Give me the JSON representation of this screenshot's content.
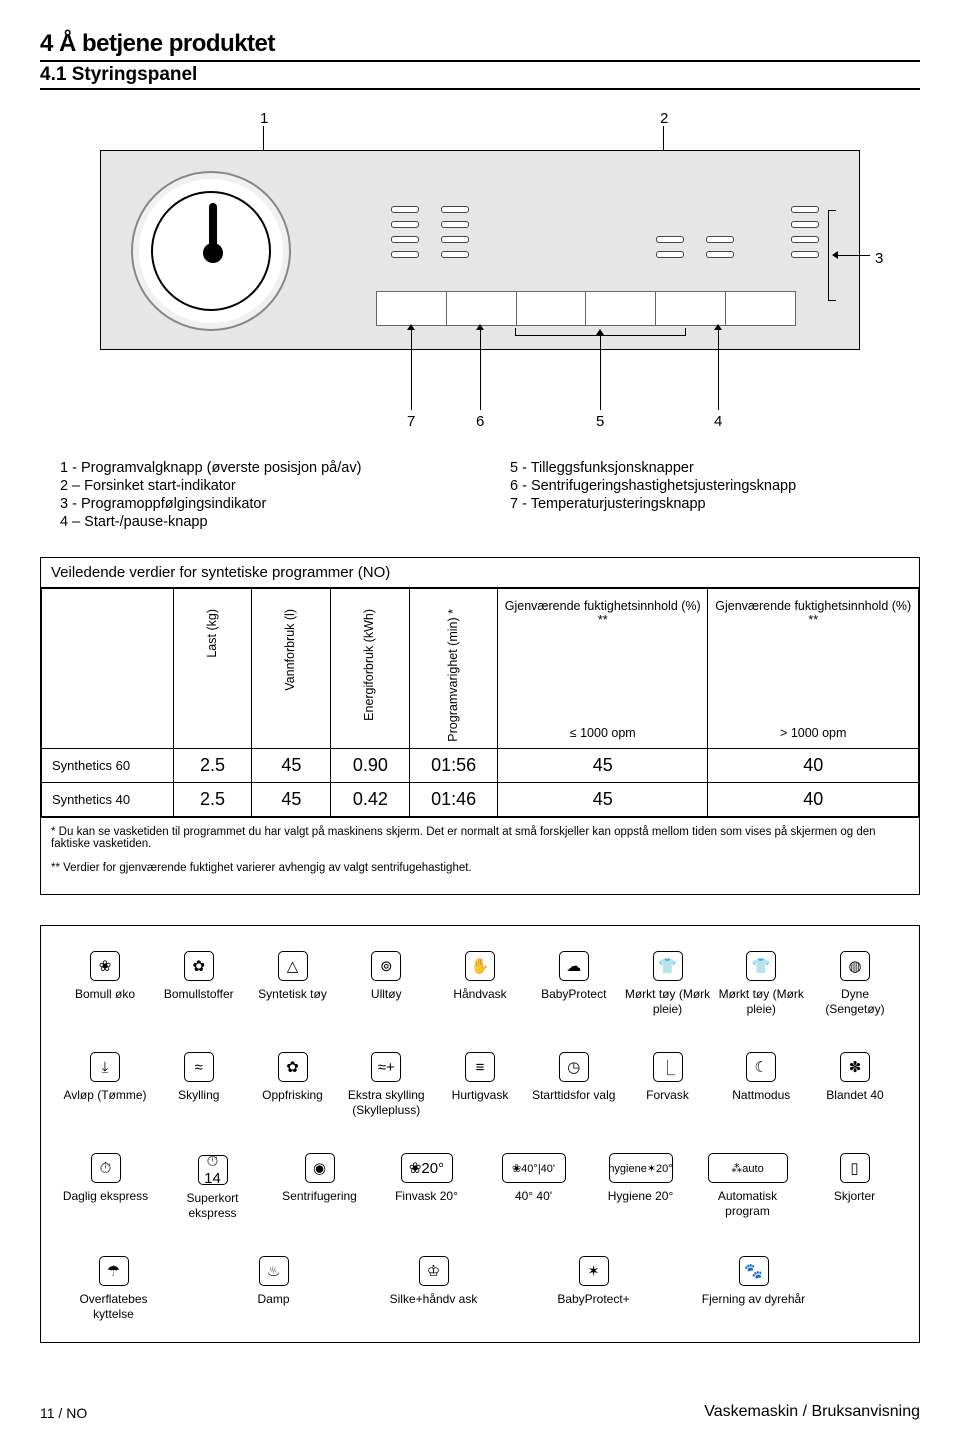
{
  "head": {
    "section": "4   Å betjene produktet",
    "subsection": "4.1 Styringspanel"
  },
  "diagram": {
    "top_labels": [
      "1",
      "2"
    ],
    "right_label": "3",
    "bottom_labels": [
      "7",
      "6",
      "5",
      "4"
    ]
  },
  "legend": {
    "left": [
      "1 - Programvalgknapp (øverste posisjon på/av)",
      "2 – Forsinket start-indikator",
      "3 - Programoppfølgingsindikator",
      "4 – Start-/pause-knapp"
    ],
    "right": [
      "5 - Tilleggsfunksjonsknapper",
      "6 - Sentrifugeringshastighetsjusteringsknapp",
      "7 - Temperaturjusteringsknapp"
    ]
  },
  "table": {
    "title": "Veiledende verdier for syntetiske programmer (NO)",
    "cols": {
      "c1": "Last (kg)",
      "c2": "Vannforbruk (l)",
      "c3": "Energiforbruk (kWh)",
      "c4": "Programvarighet (min) *",
      "c5_top": "Gjenværende fuktighetsinnhold (%) **",
      "c5_sub": "≤ 1000 opm",
      "c6_top": "Gjenværende fuktighetsinnhold (%) **",
      "c6_sub": "> 1000 opm"
    },
    "rows": [
      {
        "name": "Synthetics 60",
        "c1": "2.5",
        "c2": "45",
        "c3": "0.90",
        "c4": "01:56",
        "c5": "45",
        "c6": "40"
      },
      {
        "name": "Synthetics 40",
        "c1": "2.5",
        "c2": "45",
        "c3": "0.42",
        "c4": "01:46",
        "c5": "45",
        "c6": "40"
      }
    ],
    "note1": "* Du kan se vasketiden til programmet du har valgt på maskinens skjerm. Det er normalt at små forskjeller kan oppstå mellom tiden som vises på skjermen og den faktiske vasketiden.",
    "note2": "** Verdier for gjenværende fuktighet varierer avhengig av valgt sentrifugehastighet."
  },
  "programs": {
    "row1": [
      {
        "glyph": "❀",
        "label": "Bomull øko"
      },
      {
        "glyph": "✿",
        "label": "Bomullstoffer"
      },
      {
        "glyph": "△",
        "label": "Syntetisk tøy"
      },
      {
        "glyph": "⊚",
        "label": "Ulltøy"
      },
      {
        "glyph": "✋",
        "label": "Håndvask"
      },
      {
        "glyph": "☁",
        "label": "BabyProtect"
      },
      {
        "glyph": "👕",
        "label": "Mørkt tøy (Mørk pleie)"
      },
      {
        "glyph": "👕",
        "label": "Mørkt tøy (Mørk pleie)"
      },
      {
        "glyph": "◍",
        "label": "Dyne (Sengetøy)"
      }
    ],
    "row2": [
      {
        "glyph": "⤓",
        "label": "Avløp (Tømme)"
      },
      {
        "glyph": "≈",
        "label": "Skylling"
      },
      {
        "glyph": "✿",
        "label": "Oppfrisking"
      },
      {
        "glyph": "≈+",
        "label": "Ekstra skylling (Skyllepluss)"
      },
      {
        "glyph": "≡",
        "label": "Hurtigvask"
      },
      {
        "glyph": "◷",
        "label": "Starttidsfor valg"
      },
      {
        "glyph": "⎿",
        "label": "Forvask"
      },
      {
        "glyph": "☾",
        "label": "Nattmodus"
      },
      {
        "glyph": "✽",
        "label": "Blandet 40"
      }
    ],
    "row3": [
      {
        "glyph": "⏱",
        "label": "Daglig ekspress"
      },
      {
        "glyph": "⏱14",
        "label": "Superkort ekspress"
      },
      {
        "glyph": "◉",
        "label": "Sentrifugering"
      },
      {
        "glyph": "❀20°",
        "label": "Finvask 20°",
        "w": "wider"
      },
      {
        "glyph": "❀40°|40'",
        "label": "40° 40'",
        "w": "wider2"
      },
      {
        "glyph": "hygiene✶20°",
        "label": "Hygiene 20°",
        "w": "wider2"
      },
      {
        "glyph": "⁂auto",
        "label": "Automatisk program",
        "w": "wider3"
      },
      {
        "glyph": "▯",
        "label": "Skjorter"
      }
    ],
    "row4": [
      {
        "glyph": "☂",
        "label": "Overflatebes kyttelse"
      },
      {
        "glyph": "♨",
        "label": "Damp"
      },
      {
        "glyph": "♔",
        "label": "Silke+håndv ask"
      },
      {
        "glyph": "✶",
        "label": "BabyProtect+"
      },
      {
        "glyph": "🐾",
        "label": "Fjerning av dyrehår"
      }
    ]
  },
  "footer": {
    "page": "11 / NO",
    "doc": "Vaskemaskin / Bruksanvisning"
  }
}
